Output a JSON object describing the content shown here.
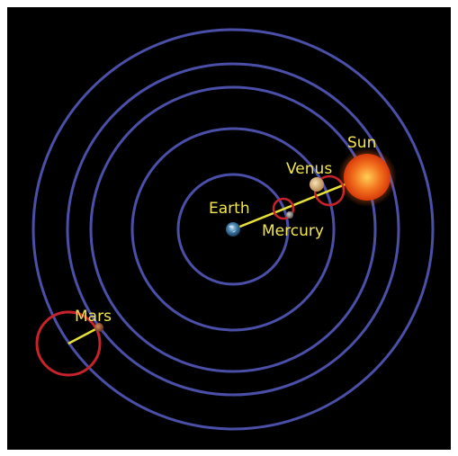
{
  "diagram": {
    "labels": {
      "earth": "Earth",
      "mercury": "Mercury",
      "venus": "Venus",
      "sun": "Sun",
      "mars": "Mars"
    },
    "colors": {
      "background": "#000000",
      "orbit": "#4b4fa8",
      "epicycle": "#c8222a",
      "connector": "#e7e13a",
      "label": "#f2e64a",
      "sun": "#f05a14",
      "venus": "#d9b27a",
      "mercury": "#8c8f86",
      "mars": "#a0563a",
      "earth": "#3d79a8"
    },
    "icons": {
      "earth": "earth-planet-icon",
      "mercury": "mercury-planet-icon",
      "venus": "venus-planet-icon",
      "sun": "sun-icon",
      "mars": "mars-planet-icon"
    }
  }
}
